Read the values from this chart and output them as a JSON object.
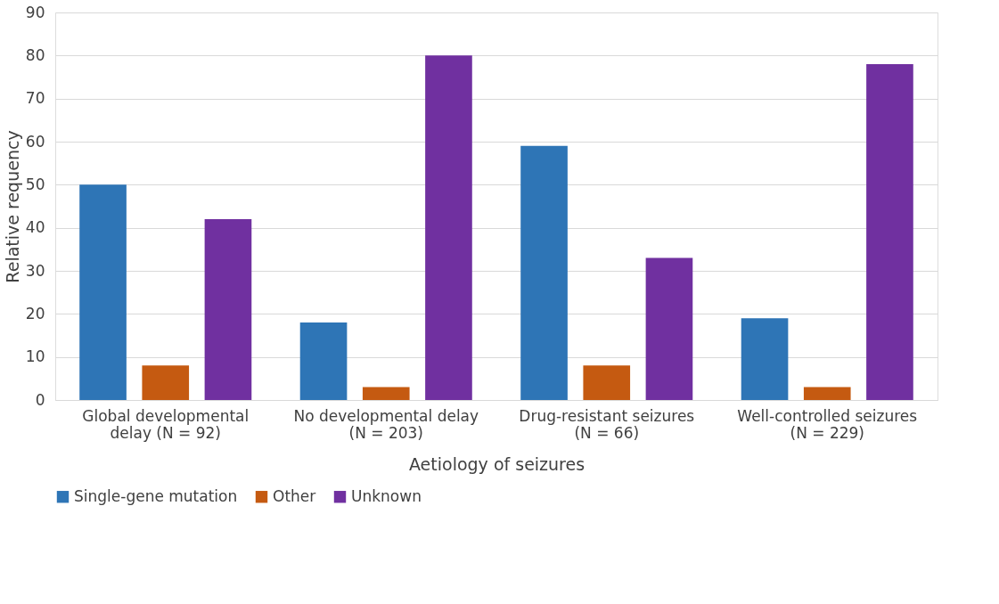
{
  "chart_data": {
    "type": "bar",
    "xlabel": "Aetiology of seizures",
    "ylabel": "Relative requency",
    "categories": [
      "Global developmental delay (N = 92)",
      "No developmental delay (N = 203)",
      "Drug-resistant seizures (N = 66)",
      "Well-controlled seizures (N = 229)"
    ],
    "series": [
      {
        "name": "Single-gene mutation",
        "color": "#2e75b6",
        "values": [
          50,
          18,
          59,
          19
        ]
      },
      {
        "name": "Other",
        "color": "#c55a11",
        "values": [
          8,
          3,
          8,
          3
        ]
      },
      {
        "name": "Unknown",
        "color": "#7030a0",
        "values": [
          42,
          80,
          33,
          78
        ]
      }
    ],
    "ylim": [
      0,
      90
    ],
    "yticks": [
      0,
      10,
      20,
      30,
      40,
      50,
      60,
      70,
      80,
      90
    ],
    "grid": "y",
    "legend": "bottom"
  }
}
